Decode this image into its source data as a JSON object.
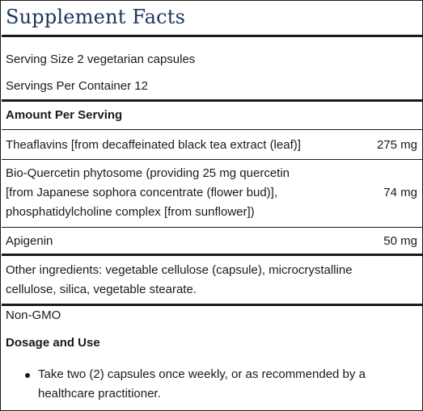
{
  "title": "Supplement Facts",
  "serving_size": "Serving Size 2 vegetarian capsules",
  "servings_per_container": "Servings Per Container 12",
  "amount_header": "Amount Per Serving",
  "ingredients": [
    {
      "lines": [
        "Theaflavins [from decaffeinated black tea extract (leaf)]"
      ],
      "amount": "275 mg"
    },
    {
      "lines": [
        "Bio-Quercetin phytosome (providing 25 mg quercetin",
        "[from Japanese sophora concentrate (flower bud)],",
        "phosphatidylcholine complex [from sunflower])"
      ],
      "amount": "74 mg"
    },
    {
      "lines": [
        "Apigenin"
      ],
      "amount": "50 mg"
    }
  ],
  "other_ingredients": [
    "Other ingredients: vegetable cellulose (capsule), microcrystalline",
    "cellulose, silica, vegetable stearate."
  ],
  "non_gmo": "Non-GMO",
  "dosage_heading": "Dosage and Use",
  "dosage_bullets": [
    {
      "lines": [
        "Take two (2) capsules once weekly, or as recommended by a",
        "healthcare practitioner."
      ]
    }
  ]
}
